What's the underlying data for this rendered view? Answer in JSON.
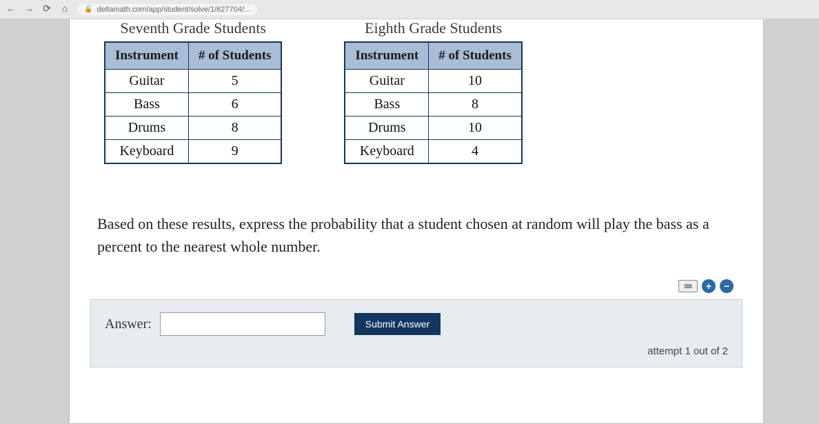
{
  "browser": {
    "url": "deltamath.com/app/student/solve/1/627704/..."
  },
  "tables": {
    "left": {
      "title": "Seventh Grade Students",
      "columns": [
        "Instrument",
        "# of Students"
      ],
      "rows": [
        [
          "Guitar",
          "5"
        ],
        [
          "Bass",
          "6"
        ],
        [
          "Drums",
          "8"
        ],
        [
          "Keyboard",
          "9"
        ]
      ],
      "header_bg": "#a9bdd6",
      "border_color": "#13365e"
    },
    "right": {
      "title": "Eighth Grade Students",
      "columns": [
        "Instrument",
        "# of Students"
      ],
      "rows": [
        [
          "Guitar",
          "10"
        ],
        [
          "Bass",
          "8"
        ],
        [
          "Drums",
          "10"
        ],
        [
          "Keyboard",
          "4"
        ]
      ],
      "header_bg": "#a9bdd6",
      "border_color": "#13365e"
    }
  },
  "question_text": "Based on these results, express the probability that a student chosen at random will play the bass as a percent to the nearest whole number.",
  "answer": {
    "label": "Answer:",
    "value": "",
    "submit_label": "Submit Answer"
  },
  "attempt_text": "attempt 1 out of 2",
  "colors": {
    "page_bg": "#ffffff",
    "answer_zone_bg": "#e9ecef",
    "submit_bg": "#13365e"
  }
}
